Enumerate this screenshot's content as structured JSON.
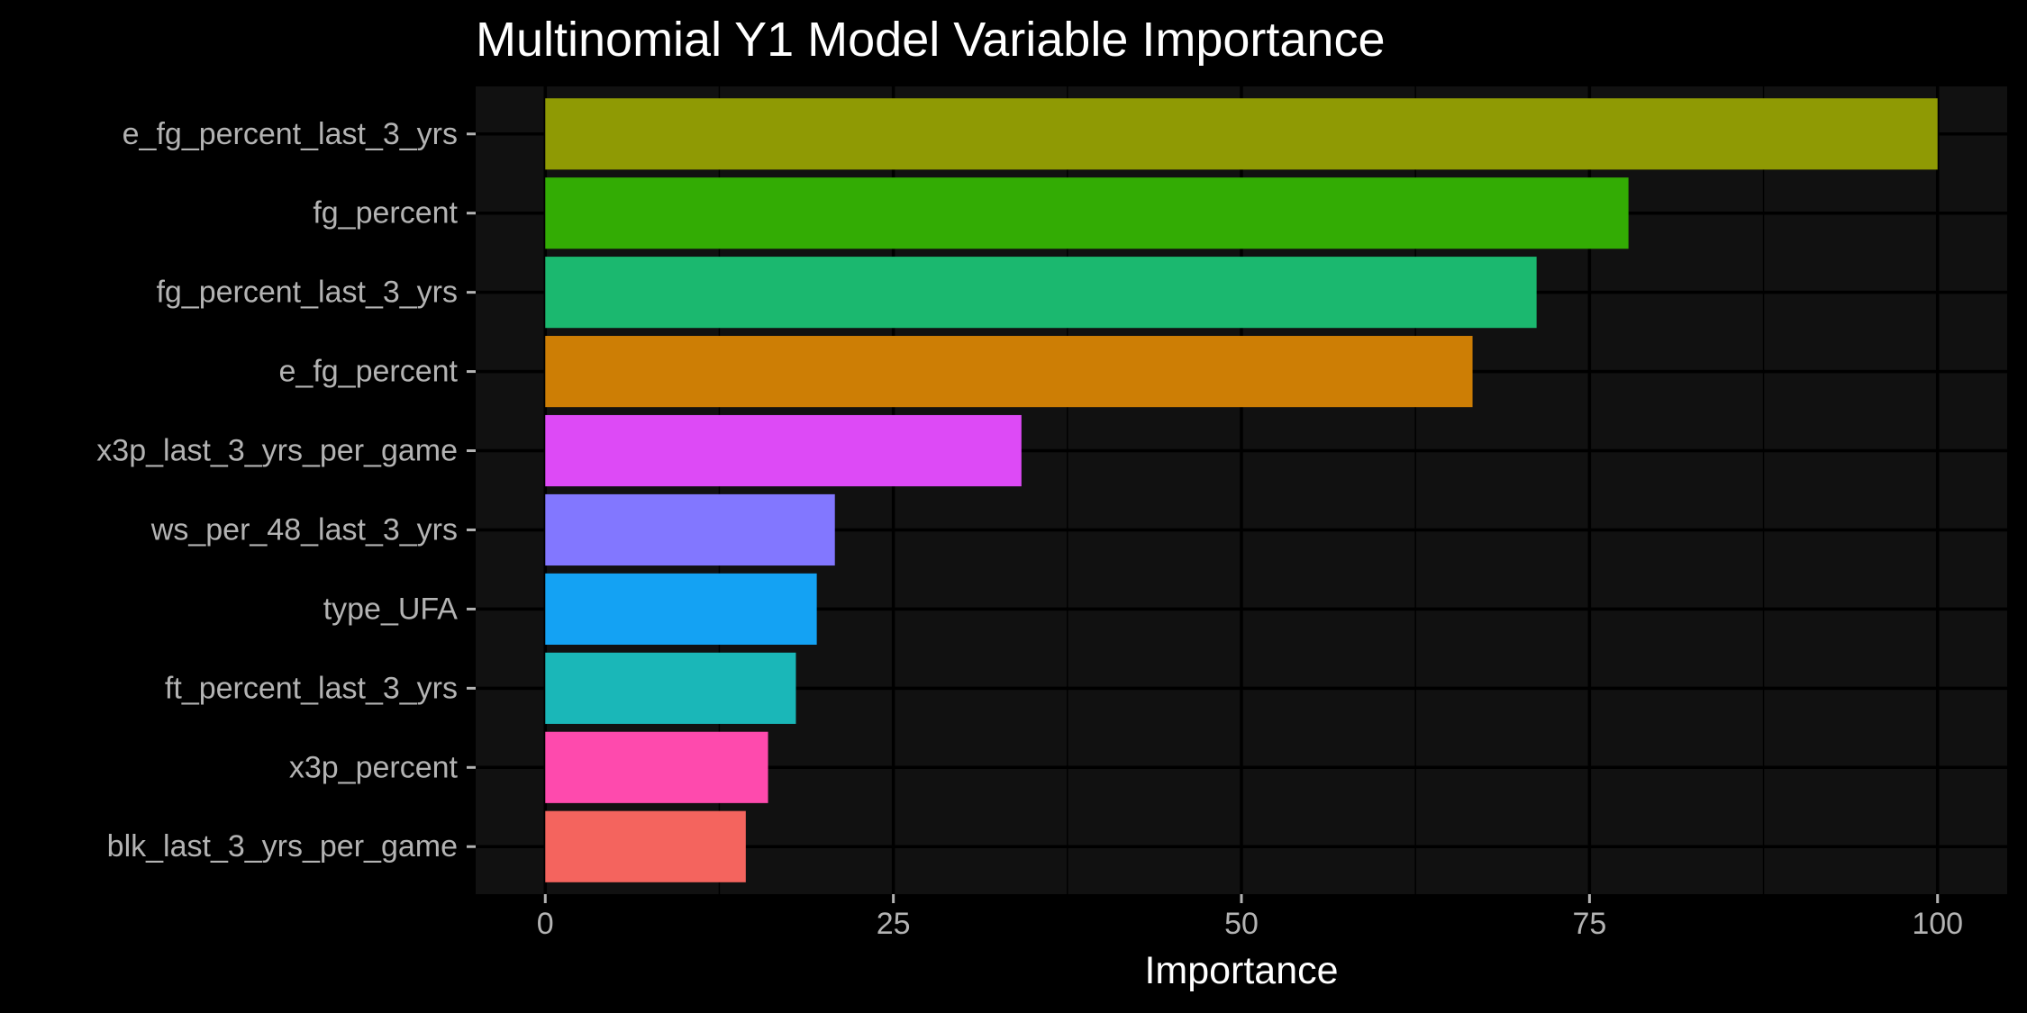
{
  "chart_data": {
    "type": "bar",
    "orientation": "horizontal",
    "title": "Multinomial Y1 Model Variable Importance",
    "xlabel": "Importance",
    "ylabel": "",
    "xlim": [
      -5,
      105
    ],
    "xticks": [
      0,
      25,
      50,
      75,
      100
    ],
    "grid": true,
    "legend": "none",
    "categories": [
      "e_fg_percent_last_3_yrs",
      "fg_percent",
      "fg_percent_last_3_yrs",
      "e_fg_percent",
      "x3p_last_3_yrs_per_game",
      "ws_per_48_last_3_yrs",
      "type_UFA",
      "ft_percent_last_3_yrs",
      "x3p_percent",
      "blk_last_3_yrs_per_game"
    ],
    "values": [
      100,
      77.8,
      71.2,
      66.6,
      34.2,
      20.8,
      19.5,
      18.0,
      16.0,
      14.4
    ],
    "colors": [
      "#8f9a04",
      "#33ac04",
      "#1bb86f",
      "#cd7e05",
      "#dd4af6",
      "#8277ff",
      "#14a2f3",
      "#1ab7b8",
      "#fe4aad",
      "#f4645e"
    ],
    "background_color": "#000000",
    "panel_color": "#111111",
    "grid_color": "#000000"
  }
}
